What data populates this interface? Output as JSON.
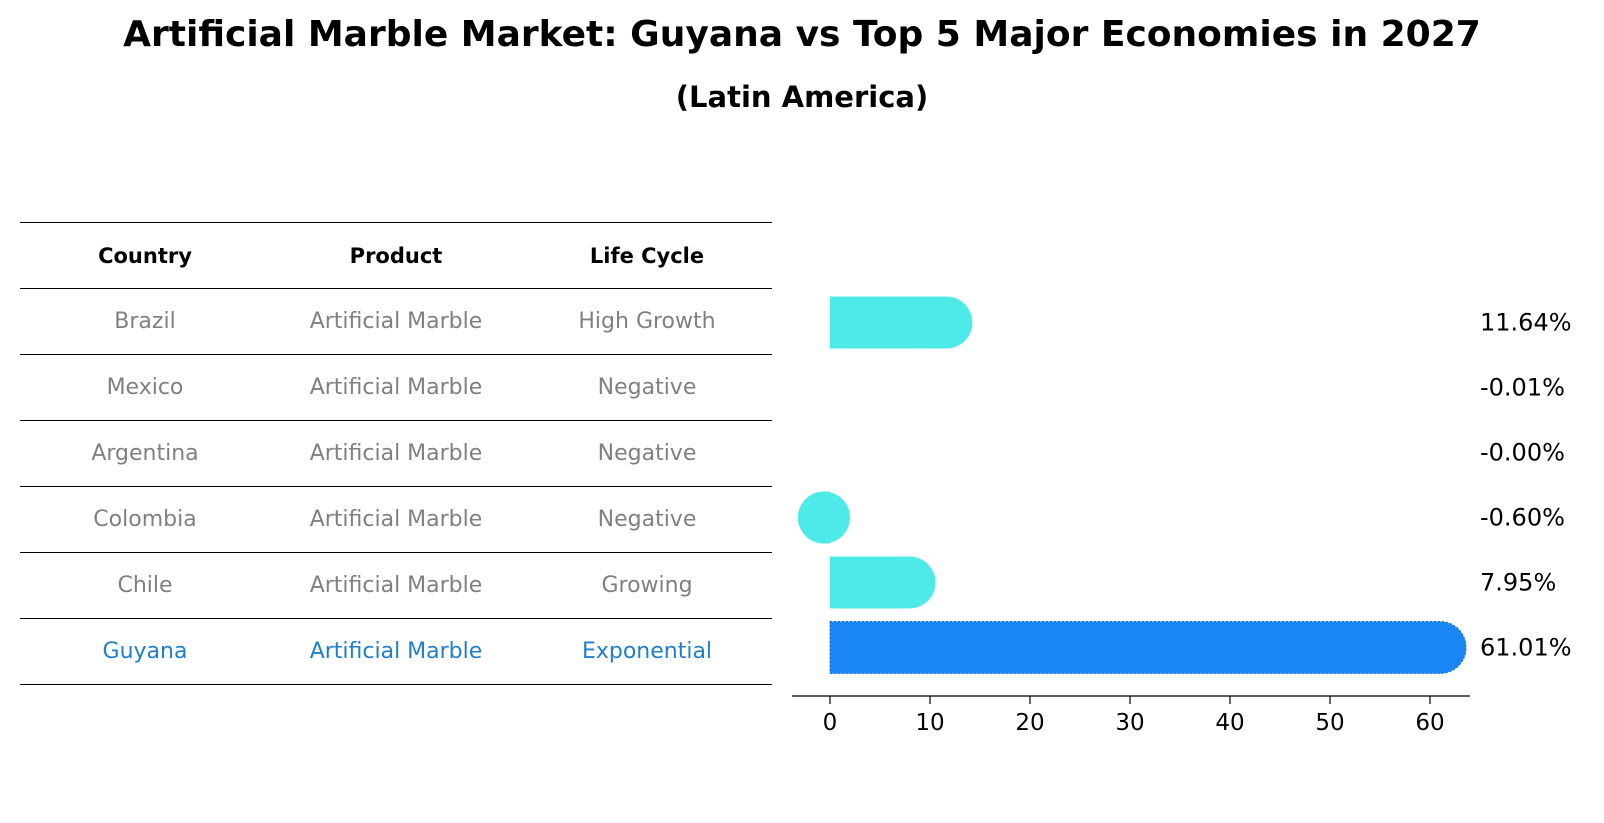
{
  "title": "Artificial Marble Market: Guyana vs Top 5 Major Economies in 2027",
  "subtitle": "(Latin America)",
  "table": {
    "headers": [
      "Country",
      "Product",
      "Life Cycle"
    ],
    "rows": [
      {
        "country": "Brazil",
        "product": "Artificial Marble",
        "life_cycle": "High Growth"
      },
      {
        "country": "Mexico",
        "product": "Artificial Marble",
        "life_cycle": "Negative"
      },
      {
        "country": "Argentina",
        "product": "Artificial Marble",
        "life_cycle": "Negative"
      },
      {
        "country": "Colombia",
        "product": "Artificial Marble",
        "life_cycle": "Negative"
      },
      {
        "country": "Chile",
        "product": "Artificial Marble",
        "life_cycle": "Growing"
      },
      {
        "country": "Guyana",
        "product": "Artificial Marble",
        "life_cycle": "Exponential"
      }
    ]
  },
  "chart_data": {
    "type": "bar",
    "orientation": "horizontal",
    "categories": [
      "Brazil",
      "Mexico",
      "Argentina",
      "Colombia",
      "Chile",
      "Guyana"
    ],
    "values": [
      11.64,
      -0.01,
      -0.0,
      -0.6,
      7.95,
      61.01
    ],
    "value_labels": [
      "11.64%",
      "-0.01%",
      "-0.00%",
      "-0.60%",
      "7.95%",
      "61.01%"
    ],
    "xticks": [
      0,
      10,
      20,
      30,
      40,
      50,
      60
    ],
    "xlim": [
      -3.8,
      64
    ],
    "highlight": "Guyana",
    "colors": {
      "default": "#4eeaea",
      "highlight": "#1a85f5"
    }
  }
}
